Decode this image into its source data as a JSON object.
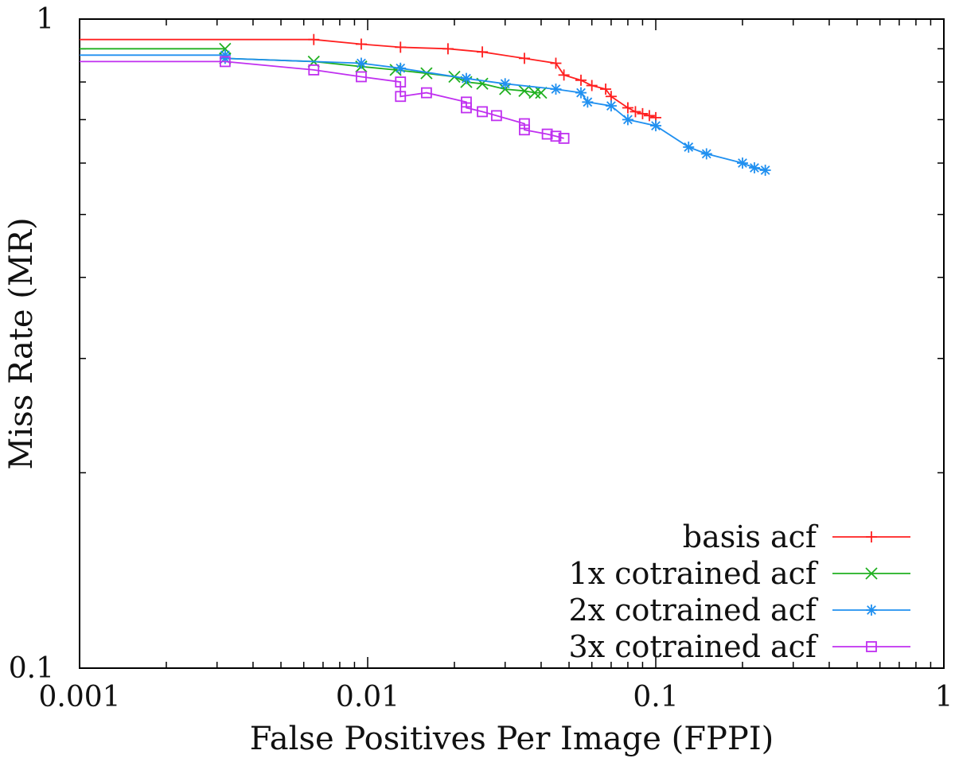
{
  "chart_data": {
    "type": "line",
    "title": "",
    "xlabel": "False Positives Per Image (FPPI)",
    "ylabel": "Miss Rate (MR)",
    "xscale": "log",
    "yscale": "log",
    "xlim": [
      0.001,
      1
    ],
    "ylim": [
      0.1,
      1
    ],
    "x_ticks": [
      "0.001",
      "0.01",
      "0.1",
      "1"
    ],
    "y_ticks": [
      "0.1",
      "1"
    ],
    "grid": false,
    "legend_position": "bottom-right",
    "series": [
      {
        "name": "basis acf",
        "color": "#ff2020",
        "marker": "plus",
        "points": [
          [
            0.001,
            0.93
          ],
          [
            0.0065,
            0.93
          ],
          [
            0.0095,
            0.915
          ],
          [
            0.013,
            0.905
          ],
          [
            0.019,
            0.9
          ],
          [
            0.025,
            0.89
          ],
          [
            0.035,
            0.87
          ],
          [
            0.045,
            0.855
          ],
          [
            0.048,
            0.82
          ],
          [
            0.055,
            0.805
          ],
          [
            0.06,
            0.79
          ],
          [
            0.067,
            0.78
          ],
          [
            0.07,
            0.76
          ],
          [
            0.08,
            0.73
          ],
          [
            0.085,
            0.72
          ],
          [
            0.09,
            0.715
          ],
          [
            0.095,
            0.71
          ],
          [
            0.1,
            0.705
          ]
        ]
      },
      {
        "name": "1x cotrained acf",
        "color": "#20b020",
        "marker": "cross",
        "points": [
          [
            0.001,
            0.9
          ],
          [
            0.0032,
            0.9
          ],
          [
            0.0032,
            0.87
          ],
          [
            0.0065,
            0.86
          ],
          [
            0.0095,
            0.845
          ],
          [
            0.0125,
            0.835
          ],
          [
            0.016,
            0.825
          ],
          [
            0.02,
            0.815
          ],
          [
            0.022,
            0.8
          ],
          [
            0.025,
            0.795
          ],
          [
            0.03,
            0.78
          ],
          [
            0.035,
            0.775
          ],
          [
            0.038,
            0.77
          ],
          [
            0.04,
            0.77
          ]
        ]
      },
      {
        "name": "2x cotrained acf",
        "color": "#2090f0",
        "marker": "star",
        "points": [
          [
            0.001,
            0.88
          ],
          [
            0.0032,
            0.88
          ],
          [
            0.0032,
            0.87
          ],
          [
            0.0095,
            0.855
          ],
          [
            0.013,
            0.84
          ],
          [
            0.022,
            0.81
          ],
          [
            0.03,
            0.795
          ],
          [
            0.045,
            0.78
          ],
          [
            0.055,
            0.77
          ],
          [
            0.058,
            0.745
          ],
          [
            0.07,
            0.735
          ],
          [
            0.08,
            0.7
          ],
          [
            0.1,
            0.685
          ],
          [
            0.13,
            0.635
          ],
          [
            0.15,
            0.62
          ],
          [
            0.2,
            0.6
          ],
          [
            0.22,
            0.59
          ],
          [
            0.24,
            0.585
          ]
        ]
      },
      {
        "name": "3x cotrained acf",
        "color": "#c030f0",
        "marker": "square",
        "points": [
          [
            0.001,
            0.86
          ],
          [
            0.0032,
            0.86
          ],
          [
            0.0065,
            0.835
          ],
          [
            0.0095,
            0.815
          ],
          [
            0.013,
            0.8
          ],
          [
            0.013,
            0.76
          ],
          [
            0.016,
            0.77
          ],
          [
            0.022,
            0.745
          ],
          [
            0.022,
            0.73
          ],
          [
            0.025,
            0.72
          ],
          [
            0.028,
            0.71
          ],
          [
            0.035,
            0.69
          ],
          [
            0.035,
            0.675
          ],
          [
            0.042,
            0.665
          ],
          [
            0.045,
            0.66
          ],
          [
            0.048,
            0.655
          ]
        ]
      }
    ]
  }
}
